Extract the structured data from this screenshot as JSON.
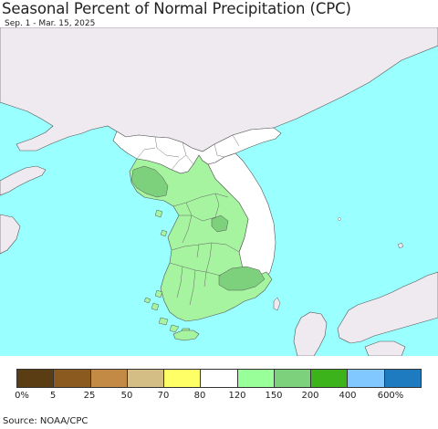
{
  "header": {
    "title": "Seasonal Percent of Normal Precipitation (CPC)",
    "subtitle": "Sep. 1 - Mar. 15, 2025"
  },
  "map": {
    "colors": {
      "ocean": "#99ffff",
      "foreign_land": "#eeeaf0",
      "normal_white": "#ffffff",
      "light_green": "#a6f4a0",
      "mid_green": "#7dd17c",
      "border": "#555555"
    }
  },
  "legend": {
    "swatches": [
      "#5a3d12",
      "#8b5a1e",
      "#c28a45",
      "#d4be85",
      "#ffff66",
      "#ffffff",
      "#99ff99",
      "#7dd17c",
      "#3cb31b",
      "#80c8ff",
      "#1f7bbf"
    ],
    "ticks": [
      "0%",
      "5",
      "25",
      "50",
      "70",
      "80",
      "120",
      "150",
      "200",
      "400",
      "600%"
    ]
  },
  "footer": {
    "source": "Source: NOAA/CPC"
  }
}
